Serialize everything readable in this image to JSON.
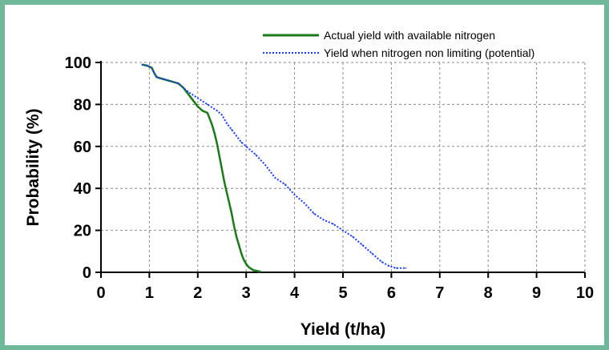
{
  "chart_data": {
    "type": "line",
    "xlabel": "Yield (t/ha)",
    "ylabel": "Probability (%)",
    "xlim": [
      0,
      10
    ],
    "ylim": [
      0,
      100
    ],
    "x_ticks": [
      "0",
      "1",
      "2",
      "3",
      "4",
      "5",
      "6",
      "7",
      "8",
      "9",
      "10"
    ],
    "y_ticks": [
      "0",
      "20",
      "40",
      "60",
      "80",
      "100"
    ],
    "grid": true,
    "legend_position": "top-right",
    "series": [
      {
        "name": "Actual yield with available nitrogen",
        "color": "#1a7a1a",
        "style": "solid",
        "points": [
          [
            0.85,
            99
          ],
          [
            0.95,
            98.5
          ],
          [
            1.05,
            97.5
          ],
          [
            1.1,
            95
          ],
          [
            1.15,
            93
          ],
          [
            1.3,
            92
          ],
          [
            1.45,
            91
          ],
          [
            1.6,
            90
          ],
          [
            1.7,
            88
          ],
          [
            1.8,
            85
          ],
          [
            1.9,
            82
          ],
          [
            2.0,
            79
          ],
          [
            2.1,
            77
          ],
          [
            2.2,
            76
          ],
          [
            2.25,
            73
          ],
          [
            2.3,
            70
          ],
          [
            2.35,
            66
          ],
          [
            2.4,
            61
          ],
          [
            2.45,
            55
          ],
          [
            2.5,
            49
          ],
          [
            2.55,
            43
          ],
          [
            2.6,
            38
          ],
          [
            2.65,
            33
          ],
          [
            2.7,
            28
          ],
          [
            2.75,
            22
          ],
          [
            2.8,
            17
          ],
          [
            2.85,
            13
          ],
          [
            2.9,
            9
          ],
          [
            2.95,
            6
          ],
          [
            3.0,
            4
          ],
          [
            3.05,
            2.5
          ],
          [
            3.15,
            1
          ],
          [
            3.3,
            0.3
          ]
        ]
      },
      {
        "name": "Yield when nitrogen non limiting (potential)",
        "color": "#1a3cff",
        "style": "dotted",
        "points": [
          [
            0.85,
            99
          ],
          [
            0.95,
            98.5
          ],
          [
            1.05,
            97.5
          ],
          [
            1.1,
            95
          ],
          [
            1.15,
            93
          ],
          [
            1.3,
            92
          ],
          [
            1.45,
            91
          ],
          [
            1.6,
            90
          ],
          [
            1.8,
            86
          ],
          [
            2.0,
            83
          ],
          [
            2.2,
            80
          ],
          [
            2.4,
            77
          ],
          [
            2.5,
            75
          ],
          [
            2.6,
            71
          ],
          [
            2.7,
            68
          ],
          [
            2.8,
            65
          ],
          [
            2.9,
            62
          ],
          [
            3.0,
            60
          ],
          [
            3.2,
            56
          ],
          [
            3.4,
            51
          ],
          [
            3.6,
            45
          ],
          [
            3.8,
            42
          ],
          [
            4.0,
            37
          ],
          [
            4.2,
            33
          ],
          [
            4.4,
            28
          ],
          [
            4.6,
            25
          ],
          [
            4.8,
            23
          ],
          [
            5.0,
            20
          ],
          [
            5.2,
            17
          ],
          [
            5.4,
            13
          ],
          [
            5.6,
            9
          ],
          [
            5.8,
            5
          ],
          [
            5.95,
            3
          ],
          [
            6.1,
            2
          ],
          [
            6.3,
            2
          ]
        ]
      }
    ]
  }
}
